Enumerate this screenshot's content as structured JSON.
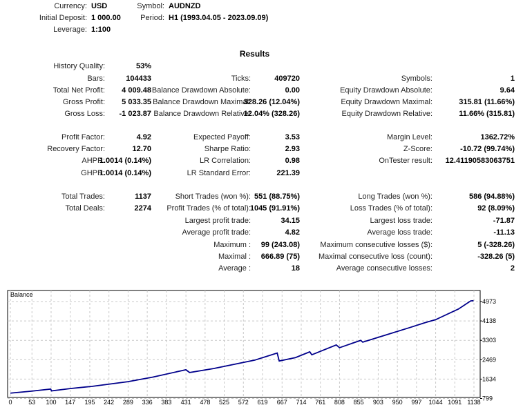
{
  "header": [
    {
      "label": "Currency:",
      "value": "USD"
    },
    {
      "label": "Symbol:",
      "value": "AUDNZD"
    },
    {
      "label": "Initial Deposit:",
      "value": "1 000.00"
    },
    {
      "label": "Period:",
      "value": "H1 (1993.04.05 - 2023.09.09)"
    },
    {
      "label": "Leverage:",
      "value": "1:100"
    }
  ],
  "results_title": "Results",
  "rows": [
    [
      [
        "History Quality:",
        "53%"
      ]
    ],
    [
      [
        "Bars:",
        "104433"
      ],
      [
        "Ticks:",
        "409720"
      ],
      [
        "Symbols:",
        "1"
      ]
    ],
    [
      [
        "Total Net Profit:",
        "4 009.48"
      ],
      [
        "Balance Drawdown Absolute:",
        "0.00"
      ],
      [
        "Equity Drawdown Absolute:",
        "9.64"
      ]
    ],
    [
      [
        "Gross Profit:",
        "5 033.35"
      ],
      [
        "Balance Drawdown Maximal:",
        "328.26 (12.04%)"
      ],
      [
        "Equity Drawdown Maximal:",
        "315.81 (11.66%)"
      ]
    ],
    [
      [
        "Gross Loss:",
        "-1 023.87"
      ],
      [
        "Balance Drawdown Relative:",
        "12.04% (328.26)"
      ],
      [
        "Equity Drawdown Relative:",
        "11.66% (315.81)"
      ]
    ],
    [
      [
        "Profit Factor:",
        "4.92"
      ],
      [
        "Expected Payoff:",
        "3.53"
      ],
      [
        "Margin Level:",
        "1362.72%"
      ]
    ],
    [
      [
        "Recovery Factor:",
        "12.70"
      ],
      [
        "Sharpe Ratio:",
        "2.93"
      ],
      [
        "Z-Score:",
        "-10.72 (99.74%)"
      ]
    ],
    [
      [
        "AHPR:",
        "1.0014 (0.14%)"
      ],
      [
        "LR Correlation:",
        "0.98"
      ],
      [
        "OnTester result:",
        "12.41190583063751"
      ]
    ],
    [
      [
        "GHPR:",
        "1.0014 (0.14%)"
      ],
      [
        "LR Standard Error:",
        "221.39"
      ]
    ],
    [
      [
        "Total Trades:",
        "1137"
      ],
      [
        "Short Trades (won %):",
        "551 (88.75%)"
      ],
      [
        "Long Trades (won %):",
        "586 (94.88%)"
      ]
    ],
    [
      [
        "Total Deals:",
        "2274"
      ],
      [
        "Profit Trades (% of total):",
        "1045 (91.91%)"
      ],
      [
        "Loss Trades (% of total):",
        "92 (8.09%)"
      ]
    ],
    [
      null,
      [
        "Largest profit trade:",
        "34.15"
      ],
      [
        "Largest loss trade:",
        "-71.87"
      ]
    ],
    [
      null,
      [
        "Average profit trade:",
        "4.82"
      ],
      [
        "Average loss trade:",
        "-11.13"
      ]
    ],
    [
      null,
      [
        "Maximum :",
        "99 (243.08)"
      ],
      [
        "Maximum consecutive losses ($):",
        "5 (-328.26)"
      ]
    ],
    [
      null,
      [
        "Maximal :",
        "666.89 (75)"
      ],
      [
        "Maximal consecutive loss (count):",
        "-328.26 (5)"
      ]
    ],
    [
      null,
      [
        "Average :",
        "18"
      ],
      [
        "Average consecutive losses:",
        "2"
      ]
    ]
  ],
  "chart_data": {
    "type": "line",
    "title": "Balance",
    "x_ticks": [
      0,
      53,
      100,
      147,
      195,
      242,
      289,
      336,
      383,
      431,
      478,
      525,
      572,
      619,
      667,
      714,
      761,
      808,
      855,
      903,
      950,
      997,
      1044,
      1091,
      1138
    ],
    "y_ticks": [
      799,
      1634,
      2469,
      3303,
      4138,
      4973
    ],
    "xlim": [
      0,
      1145
    ],
    "ylim": [
      799,
      5140
    ],
    "grid": true,
    "line_color": "#00008b",
    "series": [
      {
        "x": [
          0,
          50,
          99,
          101,
          147,
          200,
          289,
          350,
          431,
          440,
          500,
          600,
          655,
          660,
          700,
          735,
          740,
          800,
          808,
          860,
          865,
          925,
          980,
          1020,
          1044,
          1100,
          1130,
          1137
        ],
        "values": [
          1030,
          1110,
          1205,
          1125,
          1226,
          1320,
          1523,
          1720,
          2036,
          1917,
          2090,
          2450,
          2757,
          2413,
          2560,
          2807,
          2680,
          3104,
          2985,
          3303,
          3224,
          3550,
          3850,
          4075,
          4193,
          4650,
          5000,
          5009
        ]
      }
    ]
  }
}
